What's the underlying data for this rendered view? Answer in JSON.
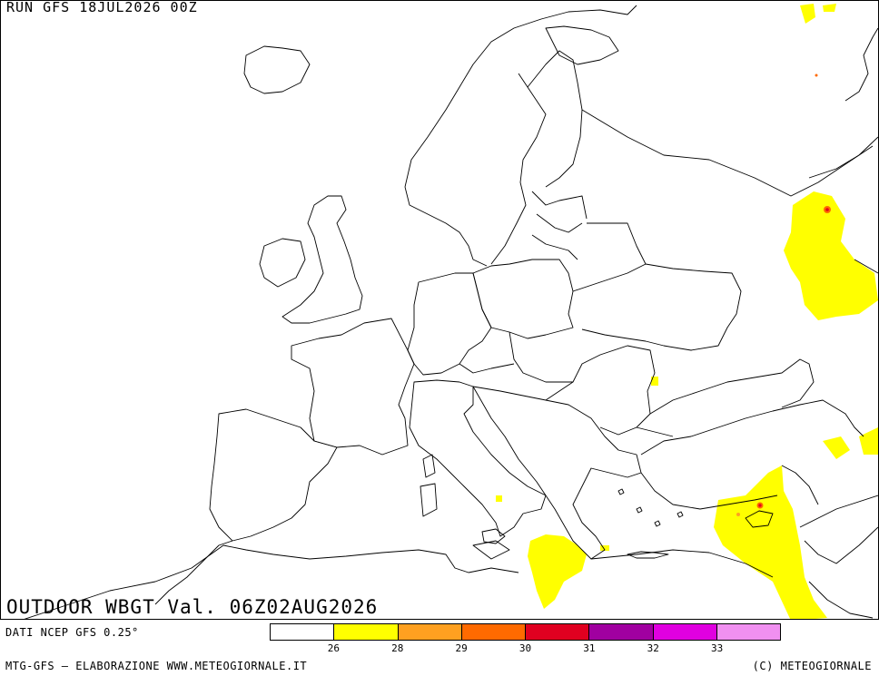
{
  "run_label": "RUN GFS 18JUL2026 00Z",
  "title": "OUTDOOR WBGT Val. 06Z02AUG2026",
  "source": "DATI NCEP GFS 0.25°",
  "footer_left": "MTG-GFS — ELABORAZIONE WWW.METEOGIORNALE.IT",
  "footer_right": "(C) METEOGIORNALE",
  "legend": {
    "colors": [
      "#ffffff",
      "#ffff00",
      "#ffa020",
      "#ff6a00",
      "#e00020",
      "#a000a0",
      "#e000e0",
      "#f090f0"
    ],
    "ticks": [
      "26",
      "28",
      "29",
      "30",
      "31",
      "32",
      "33"
    ]
  }
}
